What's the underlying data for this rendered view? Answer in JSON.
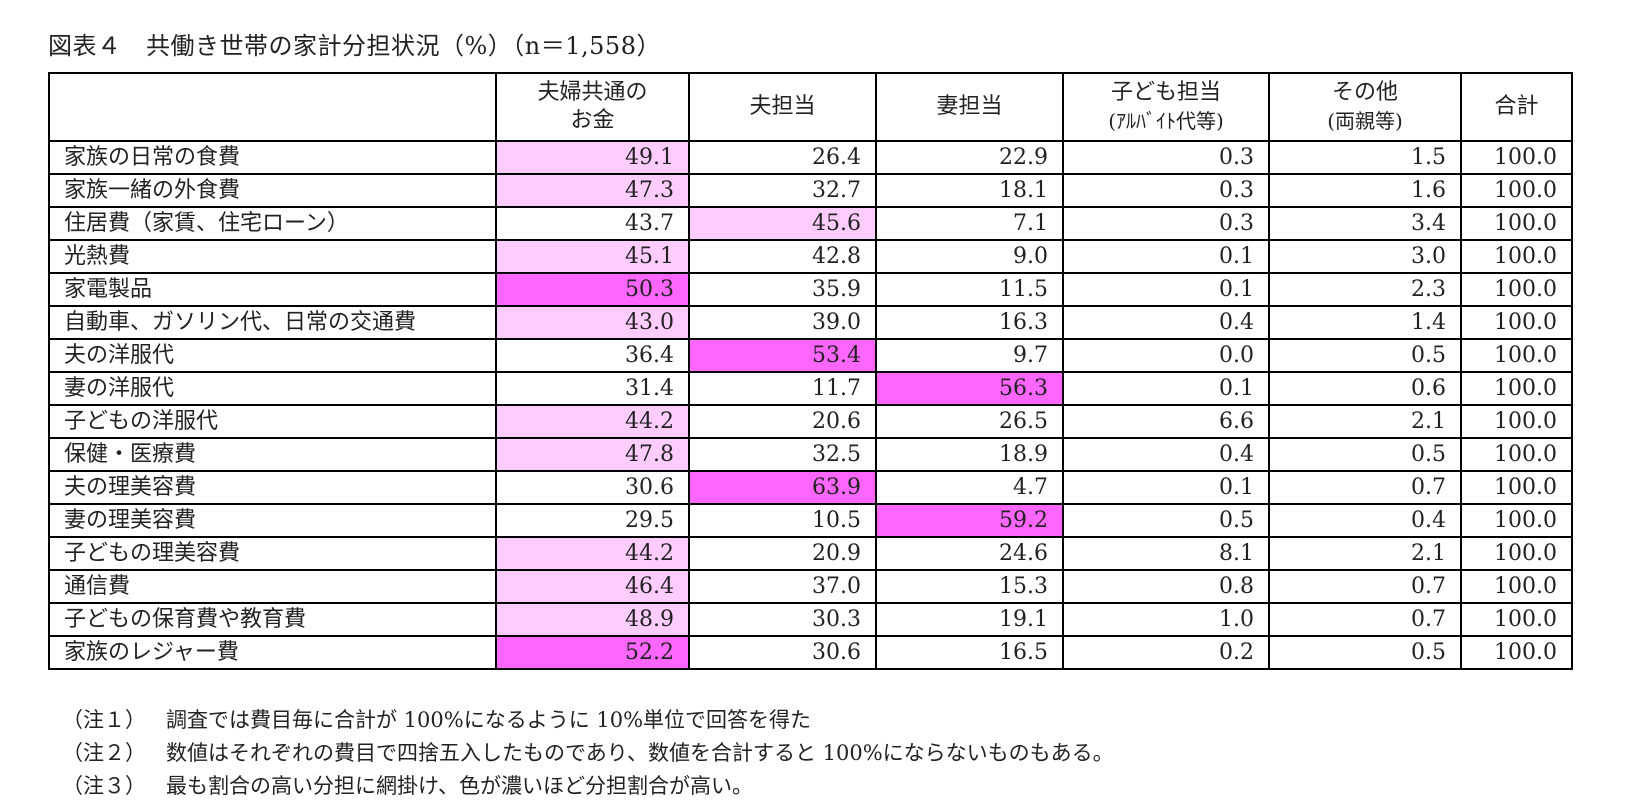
{
  "title": "図表４　共働き世帯の家計分担状況（%）（n＝1,558）",
  "table": {
    "headers": [
      {
        "line1": "",
        "line2": ""
      },
      {
        "line1": "夫婦共通の",
        "line2": "お金"
      },
      {
        "line1": "夫担当",
        "line2": ""
      },
      {
        "line1": "妻担当",
        "line2": ""
      },
      {
        "line1": "子ども担当",
        "line2": "(ｱﾙﾊﾞｲﾄ代等)"
      },
      {
        "line1": "その他",
        "line2": "(両親等)"
      },
      {
        "line1": "合計",
        "line2": ""
      }
    ],
    "rows": [
      {
        "label": "家族の日常の食費",
        "values": [
          "49.1",
          "26.4",
          "22.9",
          "0.3",
          "1.5",
          "100.0"
        ],
        "highlight": [
          1,
          0,
          0,
          0,
          0,
          0
        ]
      },
      {
        "label": "家族一緒の外食費",
        "values": [
          "47.3",
          "32.7",
          "18.1",
          "0.3",
          "1.6",
          "100.0"
        ],
        "highlight": [
          1,
          0,
          0,
          0,
          0,
          0
        ]
      },
      {
        "label": "住居費（家賃、住宅ローン）",
        "values": [
          "43.7",
          "45.6",
          "7.1",
          "0.3",
          "3.4",
          "100.0"
        ],
        "highlight": [
          0,
          1,
          0,
          0,
          0,
          0
        ]
      },
      {
        "label": "光熱費",
        "values": [
          "45.1",
          "42.8",
          "9.0",
          "0.1",
          "3.0",
          "100.0"
        ],
        "highlight": [
          1,
          0,
          0,
          0,
          0,
          0
        ]
      },
      {
        "label": "家電製品",
        "values": [
          "50.3",
          "35.9",
          "11.5",
          "0.1",
          "2.3",
          "100.0"
        ],
        "highlight": [
          2,
          0,
          0,
          0,
          0,
          0
        ]
      },
      {
        "label": "自動車、ガソリン代、日常の交通費",
        "values": [
          "43.0",
          "39.0",
          "16.3",
          "0.4",
          "1.4",
          "100.0"
        ],
        "highlight": [
          1,
          0,
          0,
          0,
          0,
          0
        ]
      },
      {
        "label": "夫の洋服代",
        "values": [
          "36.4",
          "53.4",
          "9.7",
          "0.0",
          "0.5",
          "100.0"
        ],
        "highlight": [
          0,
          2,
          0,
          0,
          0,
          0
        ]
      },
      {
        "label": "妻の洋服代",
        "values": [
          "31.4",
          "11.7",
          "56.3",
          "0.1",
          "0.6",
          "100.0"
        ],
        "highlight": [
          0,
          0,
          2,
          0,
          0,
          0
        ]
      },
      {
        "label": "子どもの洋服代",
        "values": [
          "44.2",
          "20.6",
          "26.5",
          "6.6",
          "2.1",
          "100.0"
        ],
        "highlight": [
          1,
          0,
          0,
          0,
          0,
          0
        ]
      },
      {
        "label": "保健・医療費",
        "values": [
          "47.8",
          "32.5",
          "18.9",
          "0.4",
          "0.5",
          "100.0"
        ],
        "highlight": [
          1,
          0,
          0,
          0,
          0,
          0
        ]
      },
      {
        "label": "夫の理美容費",
        "values": [
          "30.6",
          "63.9",
          "4.7",
          "0.1",
          "0.7",
          "100.0"
        ],
        "highlight": [
          0,
          2,
          0,
          0,
          0,
          0
        ]
      },
      {
        "label": "妻の理美容費",
        "values": [
          "29.5",
          "10.5",
          "59.2",
          "0.5",
          "0.4",
          "100.0"
        ],
        "highlight": [
          0,
          0,
          2,
          0,
          0,
          0
        ]
      },
      {
        "label": "子どもの理美容費",
        "values": [
          "44.2",
          "20.9",
          "24.6",
          "8.1",
          "2.1",
          "100.0"
        ],
        "highlight": [
          1,
          0,
          0,
          0,
          0,
          0
        ]
      },
      {
        "label": "通信費",
        "values": [
          "46.4",
          "37.0",
          "15.3",
          "0.8",
          "0.7",
          "100.0"
        ],
        "highlight": [
          1,
          0,
          0,
          0,
          0,
          0
        ]
      },
      {
        "label": "子どもの保育費や教育費",
        "values": [
          "48.9",
          "30.3",
          "19.1",
          "1.0",
          "0.7",
          "100.0"
        ],
        "highlight": [
          1,
          0,
          0,
          0,
          0,
          0
        ]
      },
      {
        "label": "家族のレジャー費",
        "values": [
          "52.2",
          "30.6",
          "16.5",
          "0.2",
          "0.5",
          "100.0"
        ],
        "highlight": [
          2,
          0,
          0,
          0,
          0,
          0
        ]
      }
    ]
  },
  "colors": {
    "highlight_light": "#FFCCFF",
    "highlight_dark": "#FF66FF",
    "border": "#000000"
  },
  "notes": [
    {
      "tag": "（注１）",
      "text": "調査では費目毎に合計が 100%になるように 10%単位で回答を得た"
    },
    {
      "tag": "（注２）",
      "text": "数値はそれぞれの費目で四捨五入したものであり、数値を合計すると 100%にならないものもある。"
    },
    {
      "tag": "（注３）",
      "text": "最も割合の高い分担に網掛け、色が濃いほど分担割合が高い。"
    }
  ]
}
